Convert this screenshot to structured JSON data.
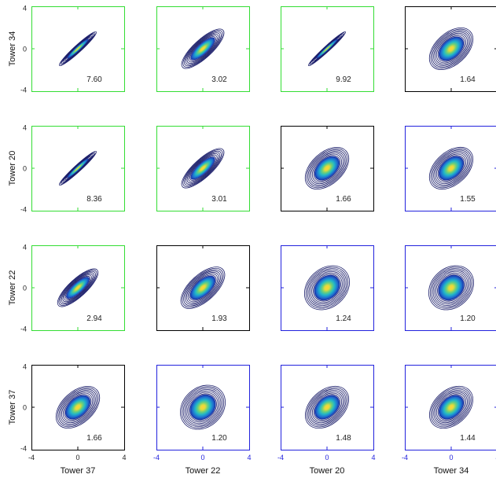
{
  "chart_data": {
    "type": "contour",
    "row_labels": [
      "Tower 34",
      "Tower 20",
      "Tower 22",
      "Tower 37"
    ],
    "col_labels": [
      "Tower 37",
      "Tower 22",
      "Tower 20",
      "Tower 34"
    ],
    "xlim": [
      -4,
      4
    ],
    "ylim": [
      -4,
      4
    ],
    "x_ticks": [
      "-4",
      "0",
      "4"
    ],
    "y_ticks": [
      "4",
      "0",
      "-4"
    ],
    "frame_colors": {
      "green": "#33dd33",
      "black": "#000000",
      "blue": "#2222dd"
    },
    "contour_color": "#1c1f6b",
    "density_colormap": [
      "#1a2a9e",
      "#1f6fd0",
      "#21b6c8",
      "#6ccf7a",
      "#e5dc3a",
      "#ffd23a"
    ],
    "panels": [
      [
        {
          "value": "7.60",
          "frame": "green",
          "corr": 0.96,
          "sd": 1.0
        },
        {
          "value": "3.02",
          "frame": "green",
          "corr": 0.8,
          "sd": 1.15
        },
        {
          "value": "9.92",
          "frame": "green",
          "corr": 0.975,
          "sd": 1.0
        },
        {
          "value": "1.64",
          "frame": "black",
          "corr": 0.45,
          "sd": 1.2
        }
      ],
      [
        {
          "value": "8.36",
          "frame": "green",
          "corr": 0.965,
          "sd": 1.0
        },
        {
          "value": "3.01",
          "frame": "green",
          "corr": 0.8,
          "sd": 1.15
        },
        {
          "value": "1.66",
          "frame": "black",
          "corr": 0.45,
          "sd": 1.2
        },
        {
          "value": "1.55",
          "frame": "blue",
          "corr": 0.42,
          "sd": 1.2
        }
      ],
      [
        {
          "value": "2.94",
          "frame": "green",
          "corr": 0.8,
          "sd": 1.1
        },
        {
          "value": "1.93",
          "frame": "black",
          "corr": 0.62,
          "sd": 1.2
        },
        {
          "value": "1.24",
          "frame": "blue",
          "corr": 0.25,
          "sd": 1.25
        },
        {
          "value": "1.20",
          "frame": "blue",
          "corr": 0.22,
          "sd": 1.25
        }
      ],
      [
        {
          "value": "1.66",
          "frame": "black",
          "corr": 0.45,
          "sd": 1.2
        },
        {
          "value": "1.20",
          "frame": "blue",
          "corr": 0.22,
          "sd": 1.25
        },
        {
          "value": "1.48",
          "frame": "blue",
          "corr": 0.38,
          "sd": 1.2
        },
        {
          "value": "1.44",
          "frame": "blue",
          "corr": 0.36,
          "sd": 1.2
        }
      ]
    ]
  }
}
